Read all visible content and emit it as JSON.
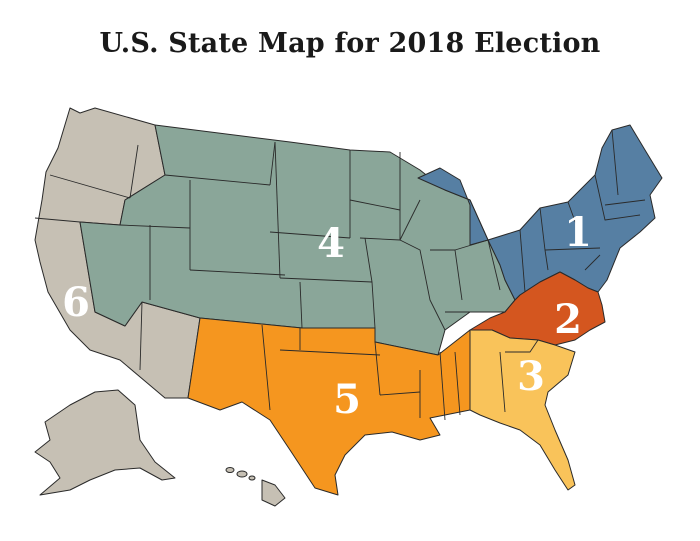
{
  "title": "U.S. State Map for 2018 Election",
  "regions": [
    {
      "id": "1",
      "label": "1",
      "color": "#567fa3"
    },
    {
      "id": "2",
      "label": "2",
      "color": "#d4561f"
    },
    {
      "id": "3",
      "label": "3",
      "color": "#f9c35a"
    },
    {
      "id": "4",
      "label": "4",
      "color": "#8aa699"
    },
    {
      "id": "5",
      "label": "5",
      "color": "#f5961f"
    },
    {
      "id": "6",
      "label": "6",
      "color": "#c6c0b4"
    }
  ]
}
